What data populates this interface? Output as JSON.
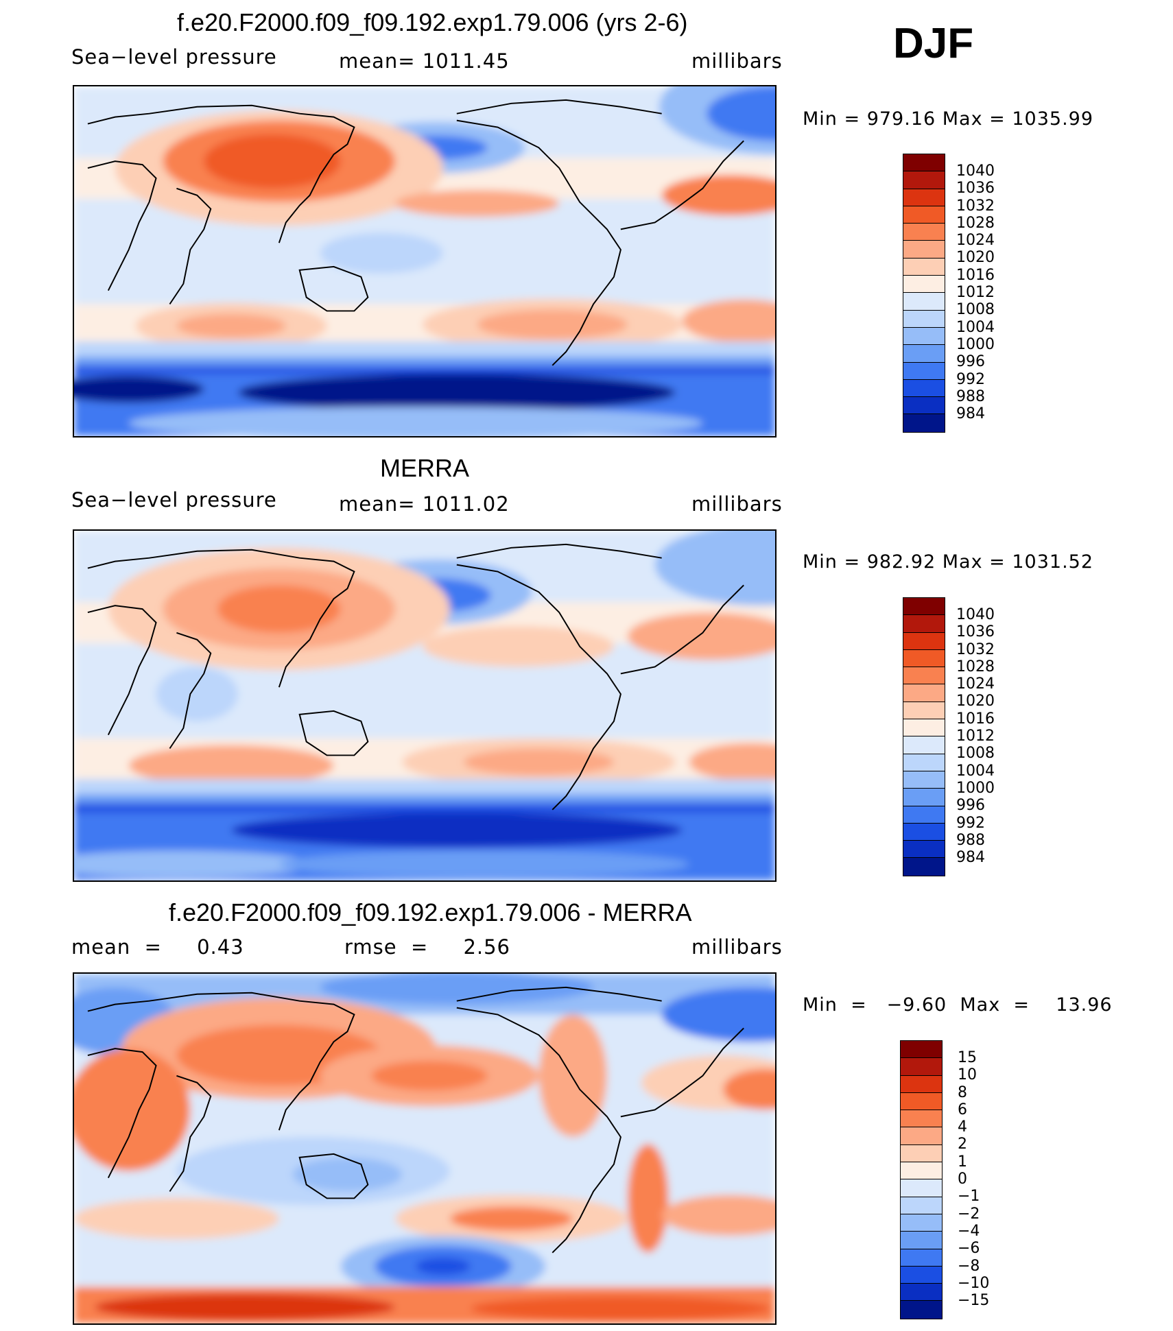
{
  "season": "DJF",
  "panels": [
    {
      "title": "f.e20.F2000.f09_f09.192.exp1.79.006 (yrs 2-6)",
      "left_label": "Sea−level pressure",
      "center_label": "mean=  1011.45",
      "units": "millibars",
      "minmax": "Min  =  979.16  Max  =  1035.99",
      "colorbar_labels": [
        "1040",
        "1036",
        "1032",
        "1028",
        "1024",
        "1020",
        "1016",
        "1012",
        "1008",
        "1004",
        "1000",
        "996",
        "992",
        "988",
        "984"
      ],
      "map_type": "model"
    },
    {
      "title": "MERRA",
      "left_label": "Sea−level pressure",
      "center_label": "mean=  1011.02",
      "units": "millibars",
      "minmax": "Min  =  982.92  Max  =  1031.52",
      "colorbar_labels": [
        "1040",
        "1036",
        "1032",
        "1028",
        "1024",
        "1020",
        "1016",
        "1012",
        "1008",
        "1004",
        "1000",
        "996",
        "992",
        "988",
        "984"
      ],
      "map_type": "obs"
    },
    {
      "title": "f.e20.F2000.f09_f09.192.exp1.79.006 - MERRA",
      "left_label": "mean  =     0.43",
      "center_label": "rmse  =     2.56",
      "units": "millibars",
      "minmax": "Min  =   −9.60  Max  =    13.96",
      "colorbar_labels": [
        "15",
        "10",
        "8",
        "6",
        "4",
        "2",
        "1",
        "0",
        "−1",
        "−2",
        "−4",
        "−6",
        "−8",
        "−10",
        "−15"
      ],
      "map_type": "diff"
    }
  ],
  "colors": {
    "palette": [
      "#7f0000",
      "#b2180c",
      "#dc3410",
      "#f05a26",
      "#f98150",
      "#fca985",
      "#fdcfb5",
      "#fdeee3",
      "#dce9fb",
      "#bcd6fb",
      "#96bdf8",
      "#6a9ef5",
      "#3f79f2",
      "#1b4fe3",
      "#0a2fc2",
      "#00158a"
    ]
  }
}
